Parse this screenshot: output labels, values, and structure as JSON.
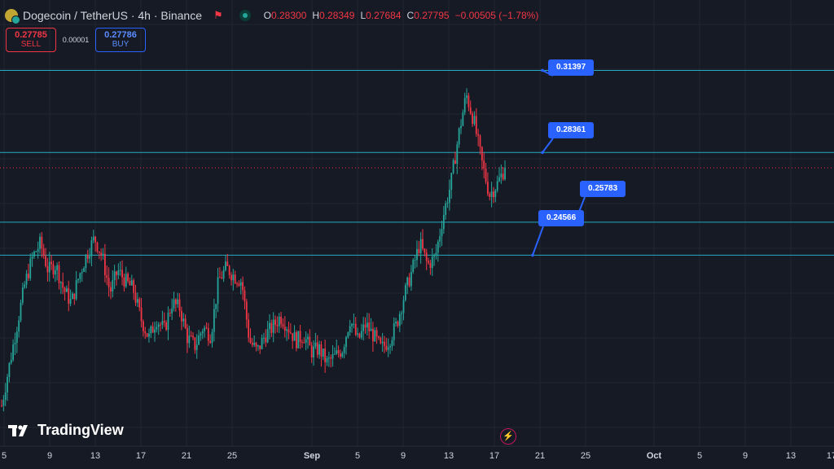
{
  "header": {
    "symbol": "Dogecoin / TetherUS · 4h · Binance",
    "flag_icon": "flag-icon",
    "ohlc": [
      {
        "label": "O",
        "value": "0.28300"
      },
      {
        "label": "H",
        "value": "0.28349"
      },
      {
        "label": "L",
        "value": "0.27684"
      },
      {
        "label": "C",
        "value": "0.27795"
      },
      {
        "label": "",
        "value": "−0.00505 (−1.78%)"
      }
    ]
  },
  "trade": {
    "sell_price": "0.27785",
    "sell_label": "SELL",
    "spread": "0.00001",
    "buy_price": "0.27786",
    "buy_label": "BUY"
  },
  "levels": [
    "0.31397",
    "0.28361",
    "0.25783",
    "0.24566"
  ],
  "colors": {
    "up": "#26a69a",
    "down": "#f23645",
    "level": "#26c6da",
    "callout": "#2962ff",
    "bg": "#161a25"
  },
  "brand": "TradingView",
  "x_axis": [
    "5",
    "9",
    "13",
    "17",
    "21",
    "25",
    "Sep",
    "5",
    "9",
    "13",
    "17",
    "21",
    "25",
    "Oct",
    "5",
    "9",
    "13",
    "17"
  ],
  "chart_data": {
    "type": "candlestick",
    "levels": [
      0.31397,
      0.28361,
      0.25783,
      0.24566
    ],
    "last_price": 0.27795,
    "ylim": [
      0.175,
      0.34
    ],
    "close_path": [
      0.19,
      0.205,
      0.22,
      0.235,
      0.245,
      0.25,
      0.24,
      0.242,
      0.233,
      0.228,
      0.238,
      0.246,
      0.252,
      0.245,
      0.232,
      0.24,
      0.236,
      0.233,
      0.222,
      0.215,
      0.222,
      0.218,
      0.228,
      0.226,
      0.215,
      0.212,
      0.219,
      0.216,
      0.236,
      0.241,
      0.238,
      0.236,
      0.214,
      0.21,
      0.216,
      0.219,
      0.223,
      0.219,
      0.214,
      0.216,
      0.21,
      0.211,
      0.206,
      0.208,
      0.211,
      0.222,
      0.214,
      0.22,
      0.216,
      0.211,
      0.214,
      0.22,
      0.231,
      0.24,
      0.25,
      0.242,
      0.245,
      0.26,
      0.272,
      0.29,
      0.305,
      0.295,
      0.28,
      0.268,
      0.272,
      0.278
    ]
  }
}
